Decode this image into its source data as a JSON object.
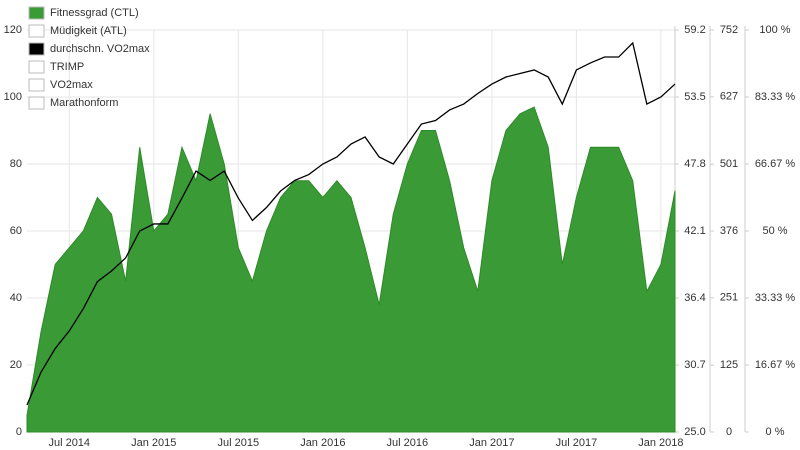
{
  "chart_data": {
    "type": "area",
    "x": [
      "2014-04",
      "2014-05",
      "2014-06",
      "2014-07",
      "2014-08",
      "2014-09",
      "2014-10",
      "2014-11",
      "2014-12",
      "2015-01",
      "2015-02",
      "2015-03",
      "2015-04",
      "2015-05",
      "2015-06",
      "2015-07",
      "2015-08",
      "2015-09",
      "2015-10",
      "2015-11",
      "2015-12",
      "2016-01",
      "2016-02",
      "2016-03",
      "2016-04",
      "2016-05",
      "2016-06",
      "2016-07",
      "2016-08",
      "2016-09",
      "2016-10",
      "2016-11",
      "2016-12",
      "2017-01",
      "2017-02",
      "2017-03",
      "2017-04",
      "2017-05",
      "2017-06",
      "2017-07",
      "2017-08",
      "2017-09",
      "2017-10",
      "2017-11",
      "2017-12",
      "2018-01",
      "2018-02"
    ],
    "xlim": [
      "2014-04",
      "2018-02"
    ],
    "xticks": [
      {
        "value": "2014-07",
        "label": "Jul 2014"
      },
      {
        "value": "2015-01",
        "label": "Jan 2015"
      },
      {
        "value": "2015-07",
        "label": "Jul 2015"
      },
      {
        "value": "2016-01",
        "label": "Jan 2016"
      },
      {
        "value": "2016-07",
        "label": "Jul 2016"
      },
      {
        "value": "2017-01",
        "label": "Jan 2017"
      },
      {
        "value": "2017-07",
        "label": "Jul 2017"
      },
      {
        "value": "2018-01",
        "label": "Jan 2018"
      }
    ],
    "ylim": [
      0,
      120
    ],
    "yticks": [
      0,
      20,
      40,
      60,
      80,
      100,
      120
    ],
    "y2lim": [
      25.0,
      59.2
    ],
    "y2ticks": [
      {
        "value": 25.0,
        "label": "25.0"
      },
      30.7,
      36.4,
      42.1,
      47.8,
      53.5,
      59.2
    ],
    "y3lim": [
      0,
      752
    ],
    "y3ticks": [
      0,
      125,
      251,
      376,
      501,
      627,
      752
    ],
    "y4lim": [
      0,
      100
    ],
    "y4ticks": [
      {
        "value": 0,
        "label": "0 %"
      },
      {
        "value": 16.67,
        "label": "16.67 %"
      },
      {
        "value": 33.33,
        "label": "33.33 %"
      },
      {
        "value": 50,
        "label": "50 %"
      },
      {
        "value": 66.67,
        "label": "66.67 %"
      },
      {
        "value": 83.33,
        "label": "83.33 %"
      },
      {
        "value": 100,
        "label": "100 %"
      }
    ],
    "grid": true,
    "series": [
      {
        "name": "Fitnessgrad (CTL)",
        "color": "#3a9a35",
        "values": [
          5,
          30,
          50,
          55,
          60,
          70,
          65,
          45,
          85,
          60,
          65,
          85,
          75,
          95,
          80,
          55,
          45,
          60,
          70,
          75,
          75,
          70,
          75,
          70,
          55,
          38,
          65,
          80,
          90,
          90,
          75,
          55,
          42,
          75,
          90,
          95,
          97,
          85,
          50,
          70,
          85,
          85,
          85,
          75,
          42,
          50,
          72
        ]
      },
      {
        "name": "Müdigkeit (ATL)",
        "color": "#ffffff"
      },
      {
        "name": "durchschn. VO2max",
        "color": "#000000",
        "axis": "y2",
        "values": [
          27.3,
          30.1,
          32.1,
          33.6,
          35.5,
          37.8,
          38.7,
          39.8,
          42.1,
          42.7,
          42.7,
          44.9,
          47.2,
          46.4,
          47.2,
          44.9,
          43.0,
          44.1,
          45.5,
          46.4,
          46.9,
          47.8,
          48.4,
          49.5,
          50.1,
          48.4,
          47.8,
          49.5,
          51.2,
          51.5,
          52.4,
          52.9,
          53.8,
          54.6,
          55.2,
          55.5,
          55.8,
          55.2,
          52.9,
          55.8,
          56.4,
          56.9,
          56.9,
          58.1,
          52.9,
          53.5,
          54.6
        ]
      },
      {
        "name": "TRIMP",
        "color": "#ffffff"
      },
      {
        "name": "VO2max",
        "color": "#ffffff"
      },
      {
        "name": "Marathonform",
        "color": "#ffffff"
      }
    ]
  }
}
